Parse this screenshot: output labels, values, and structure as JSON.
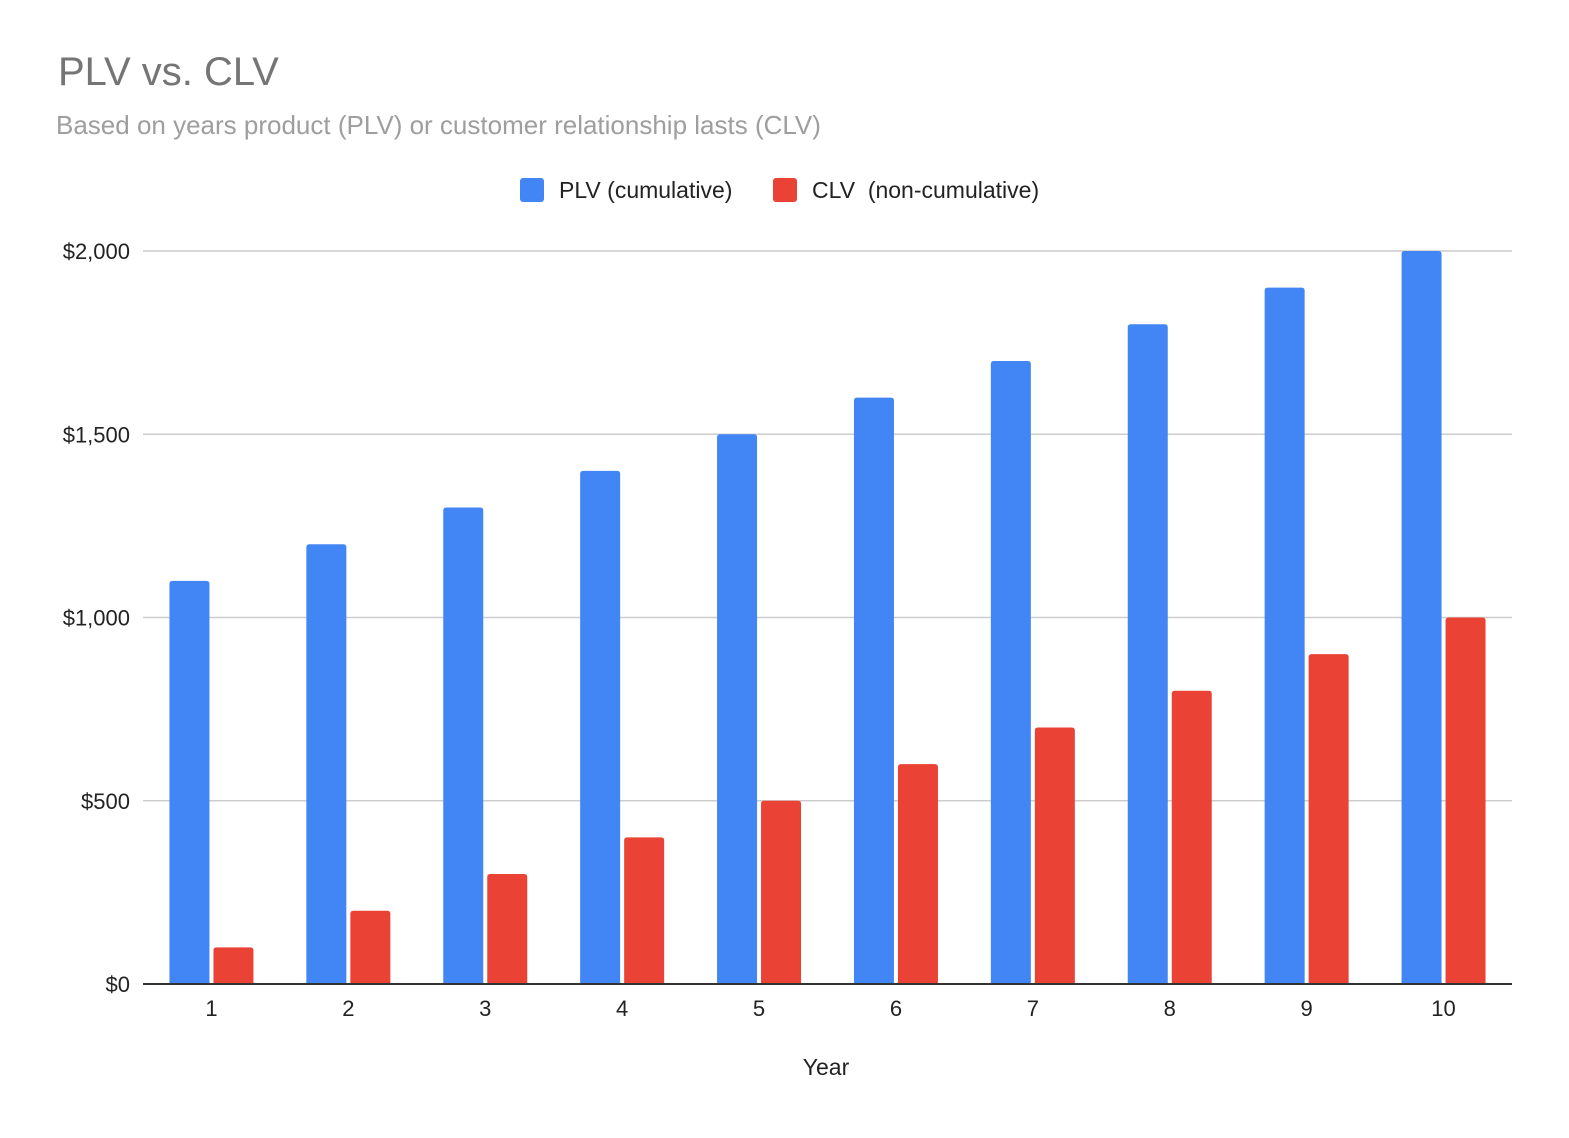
{
  "chart_data": {
    "type": "bar",
    "title": "PLV vs. CLV",
    "subtitle": "Based on years product (PLV) or customer relationship lasts (CLV)",
    "xlabel": "Year",
    "ylabel": "",
    "categories": [
      "1",
      "2",
      "3",
      "4",
      "5",
      "6",
      "7",
      "8",
      "9",
      "10"
    ],
    "series": [
      {
        "name": "PLV (cumulative)",
        "color": "#4285f4",
        "values": [
          1100,
          1200,
          1300,
          1400,
          1500,
          1600,
          1700,
          1800,
          1900,
          2000
        ]
      },
      {
        "name": "CLV  (non-cumulative)",
        "color": "#ea4335",
        "values": [
          100,
          200,
          300,
          400,
          500,
          600,
          700,
          800,
          900,
          1000
        ]
      }
    ],
    "ylim": [
      0,
      2000
    ],
    "yticks": [
      0,
      500,
      1000,
      1500,
      2000
    ],
    "ytick_labels": [
      "$0",
      "$500",
      "$1,000",
      "$1,500",
      "$2,000"
    ],
    "grid": true,
    "legend_position": "top-center"
  }
}
